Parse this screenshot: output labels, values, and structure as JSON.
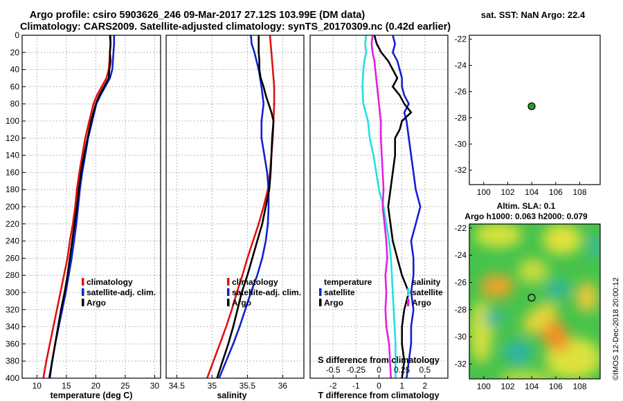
{
  "title_line1": "Argo profile: csiro 5903626_246 09-Mar-2017 27.12S 103.99E (DM data)",
  "title_line2": "Climatology: CARS2009. Satellite-adjusted climatology: synTS_20170309.nc (0.42d earlier)",
  "side_label": "©IMOS 12-Dec-2018 20:00:12",
  "colors": {
    "climatology": "#e01010",
    "satellite": "#1020d0",
    "argo": "#000000",
    "salinity_diff": "#e020e0",
    "salinity_sat": "#20e0e0",
    "grid": "#8a8a8a"
  },
  "chart_data": [
    {
      "id": "temperature",
      "type": "line",
      "xlabel": "temperature (deg C)",
      "ylabel": "",
      "xlim": [
        7.5,
        31
      ],
      "ylim": [
        400,
        0
      ],
      "xticks": [
        10,
        15,
        20,
        25,
        30
      ],
      "yticks": [
        0,
        20,
        40,
        60,
        80,
        100,
        120,
        140,
        160,
        180,
        200,
        220,
        240,
        260,
        280,
        300,
        320,
        340,
        360,
        380,
        400
      ],
      "legend": {
        "position": "lower-right",
        "entries": [
          "climatology",
          "satellite-adj. clim.",
          "Argo"
        ]
      },
      "series": [
        {
          "name": "climatology",
          "color": "#e01010",
          "depth": [
            0,
            10,
            20,
            30,
            40,
            50,
            60,
            70,
            80,
            100,
            120,
            140,
            160,
            180,
            200,
            220,
            240,
            260,
            280,
            300,
            320,
            340,
            360,
            380,
            400
          ],
          "values": [
            22.5,
            22.5,
            22.4,
            22.3,
            22.2,
            21.8,
            21.0,
            20.2,
            19.6,
            18.9,
            18.2,
            17.7,
            17.2,
            16.8,
            16.5,
            16.1,
            15.6,
            15.2,
            14.6,
            14.0,
            13.4,
            12.8,
            12.2,
            11.6,
            11.1
          ]
        },
        {
          "name": "satellite-adj. clim.",
          "color": "#1020d0",
          "depth": [
            0,
            10,
            20,
            30,
            40,
            50,
            60,
            70,
            80,
            100,
            120,
            140,
            160,
            180,
            200,
            220,
            240,
            260,
            280,
            300,
            320,
            340,
            360,
            380,
            400
          ],
          "values": [
            23.1,
            23.1,
            23.0,
            22.9,
            22.8,
            22.4,
            21.6,
            20.8,
            20.1,
            19.4,
            18.7,
            18.2,
            17.7,
            17.3,
            17.0,
            16.7,
            16.3,
            15.9,
            15.4,
            14.9,
            14.3,
            13.7,
            13.1,
            12.6,
            12.2
          ]
        },
        {
          "name": "Argo",
          "color": "#000000",
          "depth": [
            0,
            10,
            20,
            30,
            40,
            50,
            60,
            70,
            80,
            100,
            120,
            140,
            160,
            180,
            200,
            220,
            240,
            260,
            280,
            300,
            320,
            340,
            360,
            380,
            400
          ],
          "values": [
            22.4,
            22.5,
            22.4,
            22.5,
            22.3,
            22.2,
            21.4,
            20.6,
            20.0,
            19.2,
            18.6,
            18.0,
            17.5,
            17.1,
            16.8,
            16.4,
            16.0,
            15.6,
            15.2,
            14.7,
            14.1,
            13.6,
            13.1,
            12.6,
            12.1
          ]
        }
      ]
    },
    {
      "id": "salinity",
      "type": "line",
      "xlabel": "salinity",
      "ylabel": "",
      "xlim": [
        34.35,
        36.3
      ],
      "ylim": [
        400,
        0
      ],
      "xticks": [
        34.5,
        35,
        35.5,
        36
      ],
      "yticks": [
        0,
        20,
        40,
        60,
        80,
        100,
        120,
        140,
        160,
        180,
        200,
        220,
        240,
        260,
        280,
        300,
        320,
        340,
        360,
        380,
        400
      ],
      "legend": {
        "position": "lower-right",
        "entries": [
          "climatology",
          "satellite-adj. clim.",
          "Argo"
        ]
      },
      "series": [
        {
          "name": "climatology",
          "color": "#e01010",
          "depth": [
            0,
            10,
            20,
            30,
            40,
            60,
            80,
            100,
            120,
            140,
            160,
            180,
            200,
            220,
            240,
            260,
            280,
            300,
            320,
            340,
            360,
            380,
            400
          ],
          "values": [
            35.82,
            35.83,
            35.84,
            35.85,
            35.86,
            35.88,
            35.88,
            35.87,
            35.86,
            35.84,
            35.82,
            35.79,
            35.73,
            35.66,
            35.58,
            35.5,
            35.43,
            35.35,
            35.28,
            35.2,
            35.11,
            35.02,
            34.93
          ]
        },
        {
          "name": "satellite-adj. clim.",
          "color": "#1020d0",
          "depth": [
            0,
            10,
            20,
            30,
            40,
            60,
            80,
            100,
            120,
            140,
            160,
            180,
            200,
            220,
            240,
            260,
            280,
            300,
            320,
            340,
            360,
            380,
            400
          ],
          "values": [
            35.55,
            35.56,
            35.6,
            35.63,
            35.66,
            35.7,
            35.73,
            35.7,
            35.7,
            35.74,
            35.78,
            35.8,
            35.8,
            35.79,
            35.76,
            35.71,
            35.64,
            35.55,
            35.47,
            35.39,
            35.3,
            35.2,
            35.1
          ]
        },
        {
          "name": "Argo",
          "color": "#000000",
          "depth": [
            0,
            10,
            20,
            30,
            40,
            50,
            60,
            70,
            80,
            90,
            100,
            110,
            120,
            140,
            160,
            180,
            200,
            220,
            240,
            260,
            280,
            300,
            320,
            340,
            360,
            380,
            400
          ],
          "values": [
            35.66,
            35.66,
            35.66,
            35.67,
            35.67,
            35.69,
            35.73,
            35.76,
            35.8,
            35.84,
            35.87,
            35.86,
            35.85,
            35.84,
            35.83,
            35.81,
            35.76,
            35.71,
            35.64,
            35.57,
            35.5,
            35.42,
            35.36,
            35.3,
            35.23,
            35.15,
            35.07
          ]
        }
      ]
    },
    {
      "id": "difference",
      "type": "line",
      "xlabel": "T difference from climatology",
      "x2label": "S difference from climatology",
      "ylabel": "",
      "xlim": [
        -3,
        3
      ],
      "x2lim": [
        -0.75,
        0.75
      ],
      "ylim": [
        400,
        0
      ],
      "xticks": [
        -2,
        -1,
        0,
        1,
        2
      ],
      "x2ticks": [
        -0.5,
        -0.25,
        0,
        0.25,
        0.5
      ],
      "x2ticklabels": [
        "-0.5",
        "-0.25",
        "0",
        "0.25",
        "0.5"
      ],
      "yticks": [
        0,
        20,
        40,
        60,
        80,
        100,
        120,
        140,
        160,
        180,
        200,
        220,
        240,
        260,
        280,
        300,
        320,
        340,
        360,
        380,
        400
      ],
      "legend": {
        "position": "lower",
        "entries": [
          "temperature",
          "satellite",
          "Argo",
          "salinity",
          "satellite",
          "Argo"
        ]
      },
      "series": [
        {
          "name": "temperature satellite",
          "color": "#1020d0",
          "axis": "T",
          "depth": [
            0,
            10,
            20,
            30,
            40,
            50,
            60,
            70,
            80,
            90,
            100,
            120,
            140,
            160,
            180,
            200,
            220,
            240,
            260,
            280,
            300,
            320,
            340,
            360,
            380,
            400
          ],
          "values": [
            0.6,
            0.7,
            0.6,
            0.8,
            0.9,
            1.0,
            1.0,
            1.1,
            1.3,
            1.1,
            1.2,
            1.3,
            1.4,
            1.5,
            1.6,
            1.8,
            1.6,
            1.4,
            1.5,
            1.5,
            1.4,
            1.5,
            1.4,
            1.4,
            1.3,
            1.2
          ]
        },
        {
          "name": "temperature Argo",
          "color": "#000000",
          "axis": "T",
          "depth": [
            0,
            10,
            20,
            30,
            40,
            50,
            60,
            70,
            80,
            90,
            100,
            110,
            120,
            140,
            160,
            180,
            200,
            220,
            240,
            260,
            280,
            300,
            320,
            340,
            360,
            380,
            400
          ],
          "values": [
            -0.2,
            -0.1,
            0.1,
            0.4,
            0.6,
            0.8,
            0.6,
            0.9,
            1.1,
            1.4,
            1.0,
            0.9,
            0.7,
            0.7,
            0.6,
            0.5,
            0.4,
            0.5,
            0.6,
            0.8,
            1.0,
            1.3,
            1.1,
            1.0,
            1.0,
            1.1,
            1.0
          ]
        },
        {
          "name": "salinity satellite",
          "color": "#20e0e0",
          "axis": "S",
          "depth": [
            0,
            10,
            20,
            30,
            40,
            60,
            80,
            100,
            120,
            140,
            160,
            180,
            200,
            220,
            240,
            260,
            280,
            300,
            320,
            340,
            360,
            380,
            400
          ],
          "values": [
            -0.14,
            -0.15,
            -0.14,
            -0.16,
            -0.17,
            -0.18,
            -0.17,
            -0.12,
            -0.1,
            -0.06,
            -0.03,
            0.0,
            0.05,
            0.08,
            0.11,
            0.13,
            0.14,
            0.15,
            0.16,
            0.17,
            0.18,
            0.18,
            0.18
          ]
        },
        {
          "name": "salinity Argo",
          "color": "#e020e0",
          "axis": "S",
          "depth": [
            0,
            10,
            20,
            30,
            40,
            60,
            80,
            100,
            120,
            140,
            160,
            180,
            200,
            220,
            240,
            260,
            280,
            300,
            320,
            340,
            360,
            380,
            400
          ],
          "values": [
            -0.07,
            -0.08,
            -0.07,
            -0.05,
            -0.04,
            -0.02,
            0.0,
            0.02,
            0.02,
            0.03,
            0.04,
            0.05,
            0.04,
            0.06,
            0.08,
            0.09,
            0.07,
            0.08,
            0.07,
            0.08,
            0.11,
            0.12,
            0.13
          ]
        }
      ]
    },
    {
      "id": "sst-map",
      "type": "scatter",
      "title": "sat. SST: NaN Argo: 22.4",
      "xlabel": "",
      "ylabel": "",
      "xlim": [
        98.8,
        109.7
      ],
      "ylim": [
        -33.1,
        -21.7
      ],
      "xticks": [
        100,
        102,
        104,
        106,
        108
      ],
      "yticks": [
        -22,
        -24,
        -26,
        -28,
        -30,
        -32
      ],
      "points": [
        {
          "x": 103.99,
          "y": -27.12
        }
      ]
    },
    {
      "id": "sla-map",
      "type": "heatmap",
      "title": "Altim. SLA: 0.1",
      "subtitle": "Argo h1000: 0.063 h2000: 0.079",
      "xlabel": "",
      "ylabel": "",
      "xlim": [
        98.8,
        109.7
      ],
      "ylim": [
        -33.1,
        -21.7
      ],
      "xticks": [
        100,
        102,
        104,
        106,
        108
      ],
      "yticks": [
        -22,
        -24,
        -26,
        -28,
        -30,
        -32
      ],
      "points": [
        {
          "x": 103.99,
          "y": -27.12
        }
      ]
    }
  ]
}
